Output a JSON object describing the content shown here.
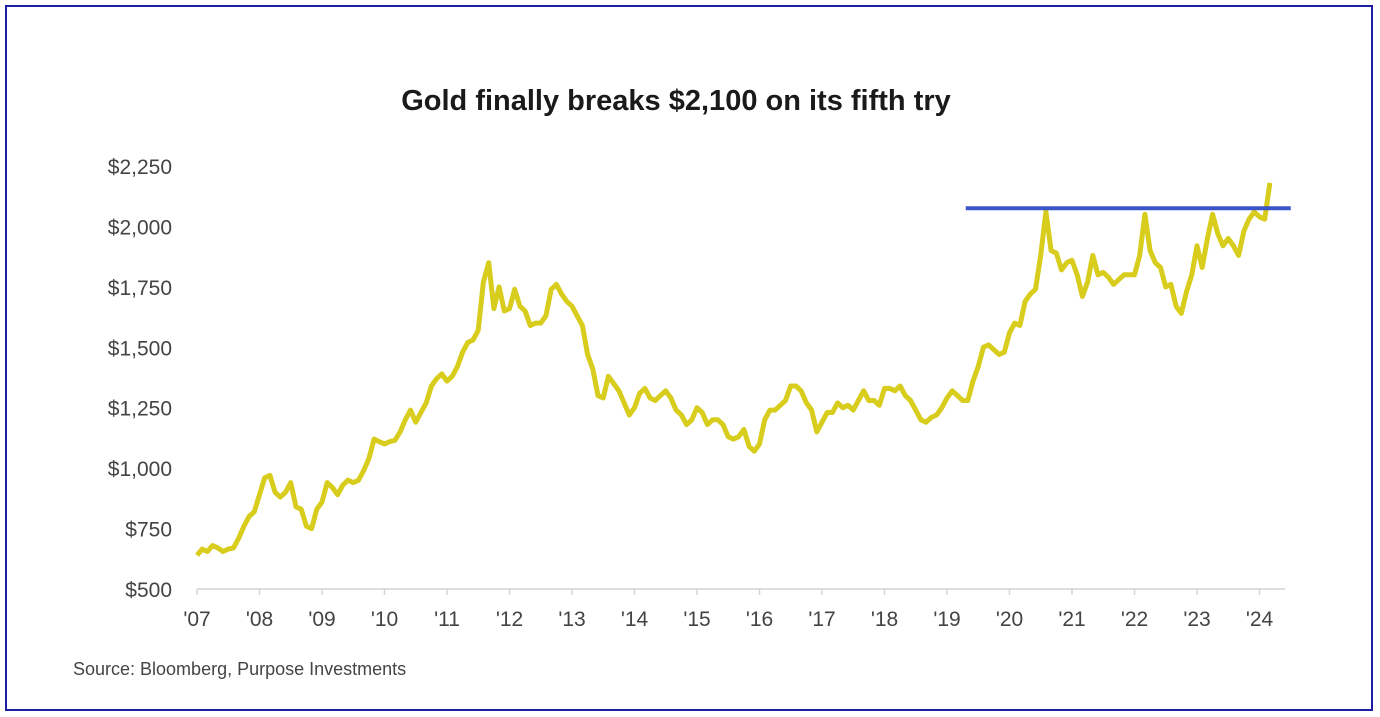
{
  "chart_data": {
    "type": "line",
    "title": "Gold finally breaks $2,100 on its fifth try",
    "source": "Source: Bloomberg, Purpose Investments",
    "xlabel": "",
    "ylabel": "",
    "ylim": [
      500,
      2250
    ],
    "y_ticks": [
      {
        "value": 500,
        "label": "$500"
      },
      {
        "value": 750,
        "label": "$750"
      },
      {
        "value": 1000,
        "label": "$1,000"
      },
      {
        "value": 1250,
        "label": "$1,250"
      },
      {
        "value": 1500,
        "label": "$1,500"
      },
      {
        "value": 1750,
        "label": "$1,750"
      },
      {
        "value": 2000,
        "label": "$2,000"
      },
      {
        "value": 2250,
        "label": "$2,250"
      }
    ],
    "x_ticks": [
      {
        "value": 2007,
        "label": "'07"
      },
      {
        "value": 2008,
        "label": "'08"
      },
      {
        "value": 2009,
        "label": "'09"
      },
      {
        "value": 2010,
        "label": "'10"
      },
      {
        "value": 2011,
        "label": "'11"
      },
      {
        "value": 2012,
        "label": "'12"
      },
      {
        "value": 2013,
        "label": "'13"
      },
      {
        "value": 2014,
        "label": "'14"
      },
      {
        "value": 2015,
        "label": "'15"
      },
      {
        "value": 2016,
        "label": "'16"
      },
      {
        "value": 2017,
        "label": "'17"
      },
      {
        "value": 2018,
        "label": "'18"
      },
      {
        "value": 2019,
        "label": "'19"
      },
      {
        "value": 2020,
        "label": "'20"
      },
      {
        "value": 2021,
        "label": "'21"
      },
      {
        "value": 2022,
        "label": "'22"
      },
      {
        "value": 2023,
        "label": "'23"
      },
      {
        "value": 2024,
        "label": "'24"
      }
    ],
    "xlim": [
      2007,
      2024.5
    ],
    "series": [
      {
        "name": "Gold price (USD/oz)",
        "color": "#d8cc1c",
        "start": 2007.0,
        "step_years": 0.08333,
        "values": [
          640,
          665,
          655,
          680,
          670,
          655,
          665,
          670,
          710,
          760,
          800,
          820,
          890,
          960,
          970,
          900,
          880,
          900,
          940,
          840,
          830,
          760,
          750,
          830,
          860,
          940,
          920,
          890,
          930,
          950,
          940,
          950,
          990,
          1040,
          1120,
          1110,
          1100,
          1110,
          1115,
          1150,
          1200,
          1240,
          1190,
          1230,
          1270,
          1340,
          1370,
          1390,
          1360,
          1380,
          1420,
          1480,
          1520,
          1530,
          1570,
          1770,
          1850,
          1660,
          1750,
          1650,
          1660,
          1740,
          1670,
          1650,
          1590,
          1600,
          1600,
          1630,
          1740,
          1760,
          1720,
          1690,
          1670,
          1630,
          1590,
          1470,
          1410,
          1300,
          1290,
          1380,
          1350,
          1320,
          1270,
          1220,
          1250,
          1310,
          1330,
          1290,
          1280,
          1300,
          1320,
          1290,
          1240,
          1220,
          1180,
          1200,
          1250,
          1230,
          1180,
          1200,
          1200,
          1180,
          1130,
          1120,
          1130,
          1160,
          1090,
          1070,
          1100,
          1200,
          1240,
          1240,
          1260,
          1280,
          1340,
          1340,
          1320,
          1270,
          1240,
          1150,
          1190,
          1230,
          1230,
          1270,
          1250,
          1260,
          1240,
          1280,
          1320,
          1280,
          1280,
          1260,
          1330,
          1330,
          1320,
          1340,
          1300,
          1280,
          1240,
          1200,
          1190,
          1210,
          1220,
          1250,
          1290,
          1320,
          1300,
          1280,
          1280,
          1360,
          1420,
          1500,
          1510,
          1490,
          1470,
          1480,
          1560,
          1600,
          1590,
          1690,
          1720,
          1740,
          1880,
          2060,
          1900,
          1890,
          1820,
          1850,
          1860,
          1800,
          1710,
          1770,
          1880,
          1800,
          1810,
          1790,
          1760,
          1780,
          1800,
          1800,
          1800,
          1880,
          2050,
          1900,
          1850,
          1830,
          1750,
          1760,
          1670,
          1640,
          1730,
          1800,
          1920,
          1830,
          1950,
          2050,
          1970,
          1920,
          1950,
          1920,
          1880,
          1980,
          2030,
          2060,
          2040,
          2030,
          2180
        ]
      }
    ],
    "annotations": [
      {
        "type": "hline",
        "value": 2075,
        "x_from": 2019.3,
        "x_to": 2024.5,
        "color": "#3a55c8"
      }
    ]
  }
}
